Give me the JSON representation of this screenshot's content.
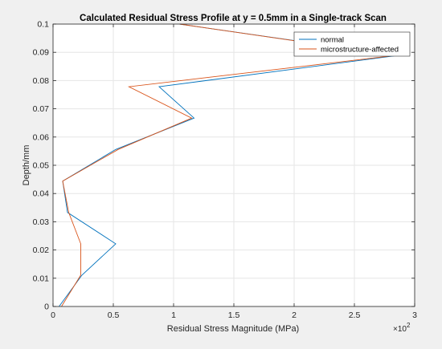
{
  "chart_data": {
    "type": "line",
    "title": "Calculated Residual Stress Profile at y = 0.5mm in a Single-track Scan",
    "xlabel": "Residual Stress Magnitude (MPa)",
    "ylabel": "Depth/mm",
    "x_multiplier_label": "×10",
    "x_multiplier_exponent": "2",
    "xlim": [
      0,
      3
    ],
    "ylim": [
      0,
      0.1
    ],
    "xticks": [
      0,
      0.5,
      1,
      1.5,
      2,
      2.5,
      3
    ],
    "xtick_labels": [
      "0",
      "0.5",
      "1",
      "1.5",
      "2",
      "2.5",
      "3"
    ],
    "yticks": [
      0,
      0.01,
      0.02,
      0.03,
      0.04,
      0.05,
      0.06,
      0.07,
      0.08,
      0.09,
      0.1
    ],
    "ytick_labels": [
      "0",
      "0.01",
      "0.02",
      "0.03",
      "0.04",
      "0.05",
      "0.06",
      "0.07",
      "0.08",
      "0.09",
      "0.1"
    ],
    "grid": true,
    "legend_position": "top-right",
    "series": [
      {
        "name": "normal",
        "color": "#0072BD",
        "x": [
          0.05,
          0.24,
          0.52,
          0.12,
          0.08,
          0.52,
          1.17,
          0.88,
          2.86,
          1.05
        ],
        "y": [
          0,
          0.0111,
          0.0222,
          0.0333,
          0.0444,
          0.0556,
          0.0667,
          0.0778,
          0.0889,
          0.1
        ]
      },
      {
        "name": "microstructure-affected",
        "color": "#D95319",
        "x": [
          0.07,
          0.23,
          0.23,
          0.13,
          0.08,
          0.54,
          1.15,
          0.63,
          2.84,
          1.05
        ],
        "y": [
          0,
          0.0111,
          0.0222,
          0.0333,
          0.0444,
          0.0556,
          0.0667,
          0.0778,
          0.0889,
          0.1
        ]
      }
    ]
  }
}
